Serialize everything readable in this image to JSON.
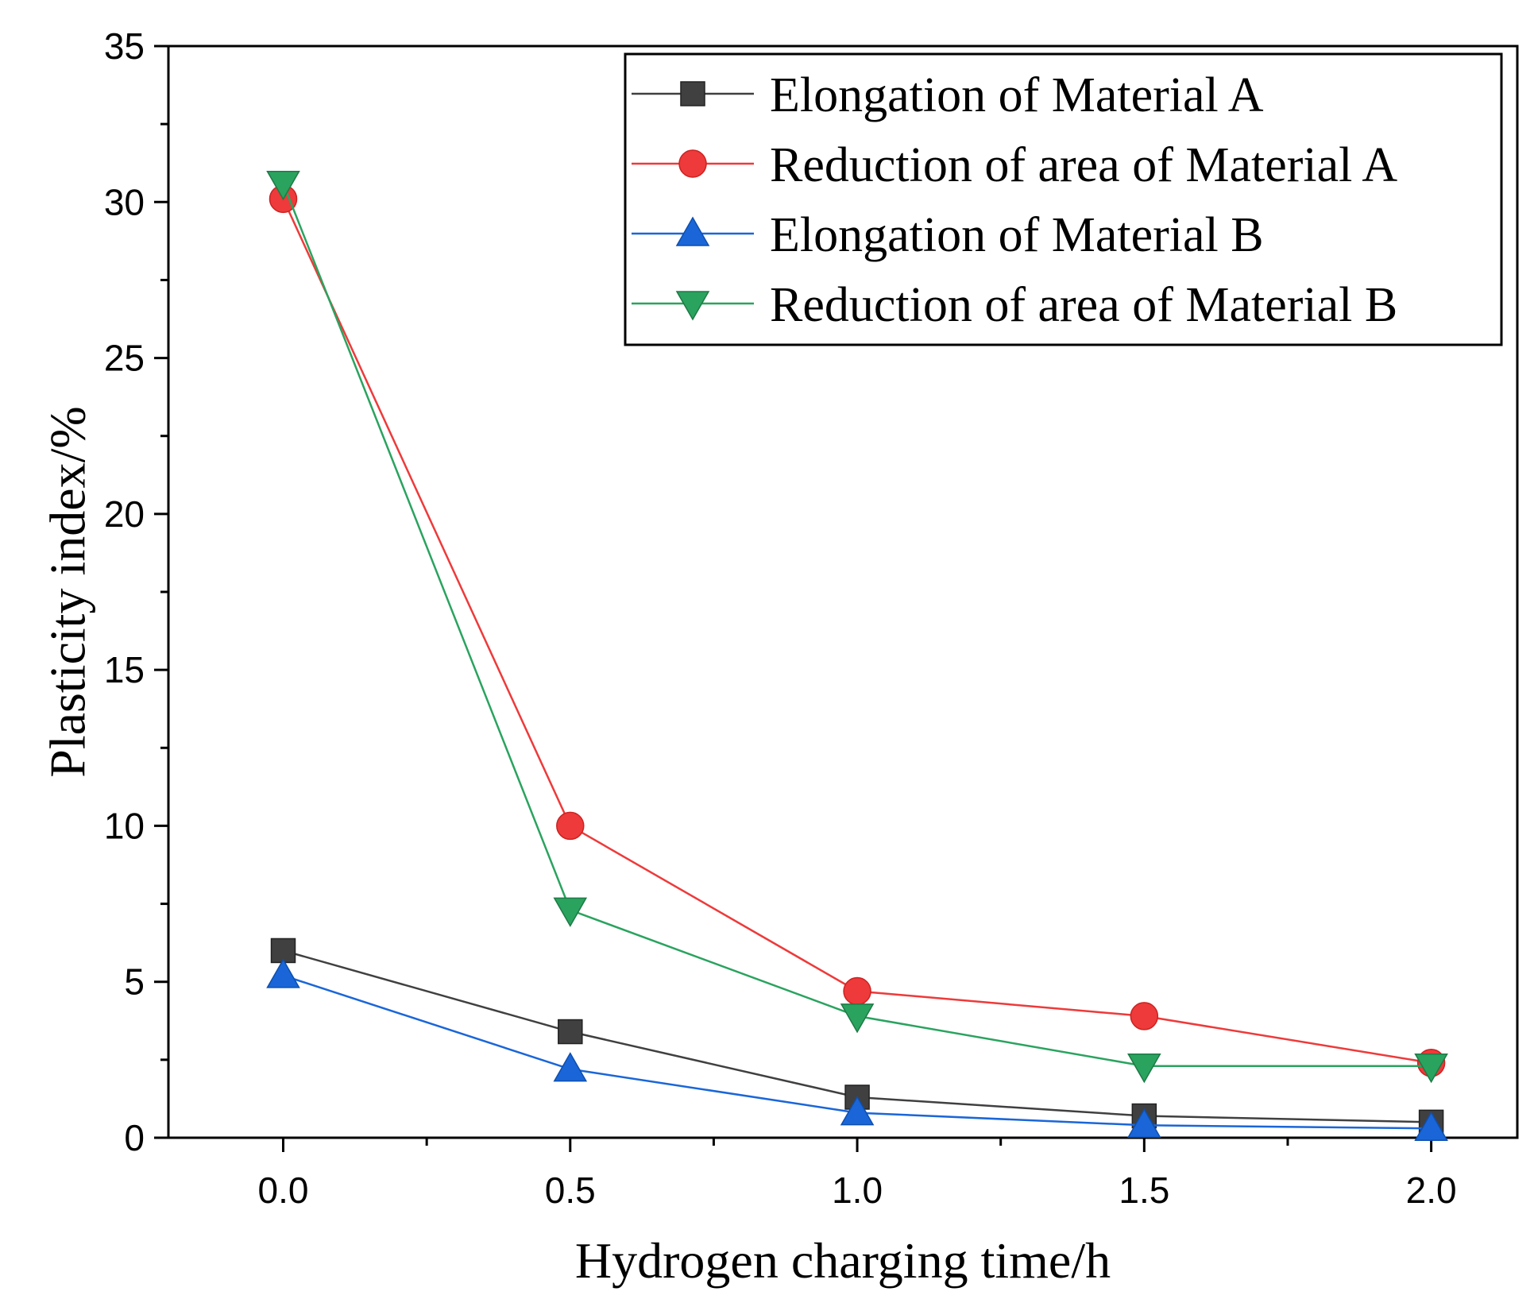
{
  "chart_data": {
    "type": "line",
    "title": "",
    "xlabel": "Hydrogen charging time/h",
    "ylabel": "Plasticity index/%",
    "xlim": [
      -0.2,
      2.15
    ],
    "ylim": [
      0,
      35
    ],
    "x": [
      0.0,
      0.5,
      1.0,
      1.5,
      2.0
    ],
    "xticks": [
      0.0,
      0.5,
      1.0,
      1.5,
      2.0
    ],
    "xtick_labels": [
      "0.0",
      "0.5",
      "1.0",
      "1.5",
      "2.0"
    ],
    "yticks": [
      0,
      5,
      10,
      15,
      20,
      25,
      30,
      35
    ],
    "ytick_labels": [
      "0",
      "5",
      "10",
      "15",
      "20",
      "25",
      "30",
      "35"
    ],
    "grid": false,
    "legend_position": "top-right",
    "series": [
      {
        "name": "Elongation of Material A",
        "marker": "square",
        "color": "#404040",
        "values": [
          6.0,
          3.4,
          1.3,
          0.7,
          0.5
        ]
      },
      {
        "name": "Reduction of area of Material A",
        "marker": "circle",
        "color": "#ee3a3a",
        "values": [
          30.1,
          10.0,
          4.7,
          3.9,
          2.4
        ]
      },
      {
        "name": "Elongation of Material B",
        "marker": "triangle-up",
        "color": "#1a66d8",
        "values": [
          5.2,
          2.2,
          0.8,
          0.4,
          0.3
        ]
      },
      {
        "name": "Reduction of area of Material B",
        "marker": "triangle-down",
        "color": "#2aa35f",
        "values": [
          30.6,
          7.3,
          3.9,
          2.3,
          2.3
        ]
      }
    ]
  }
}
